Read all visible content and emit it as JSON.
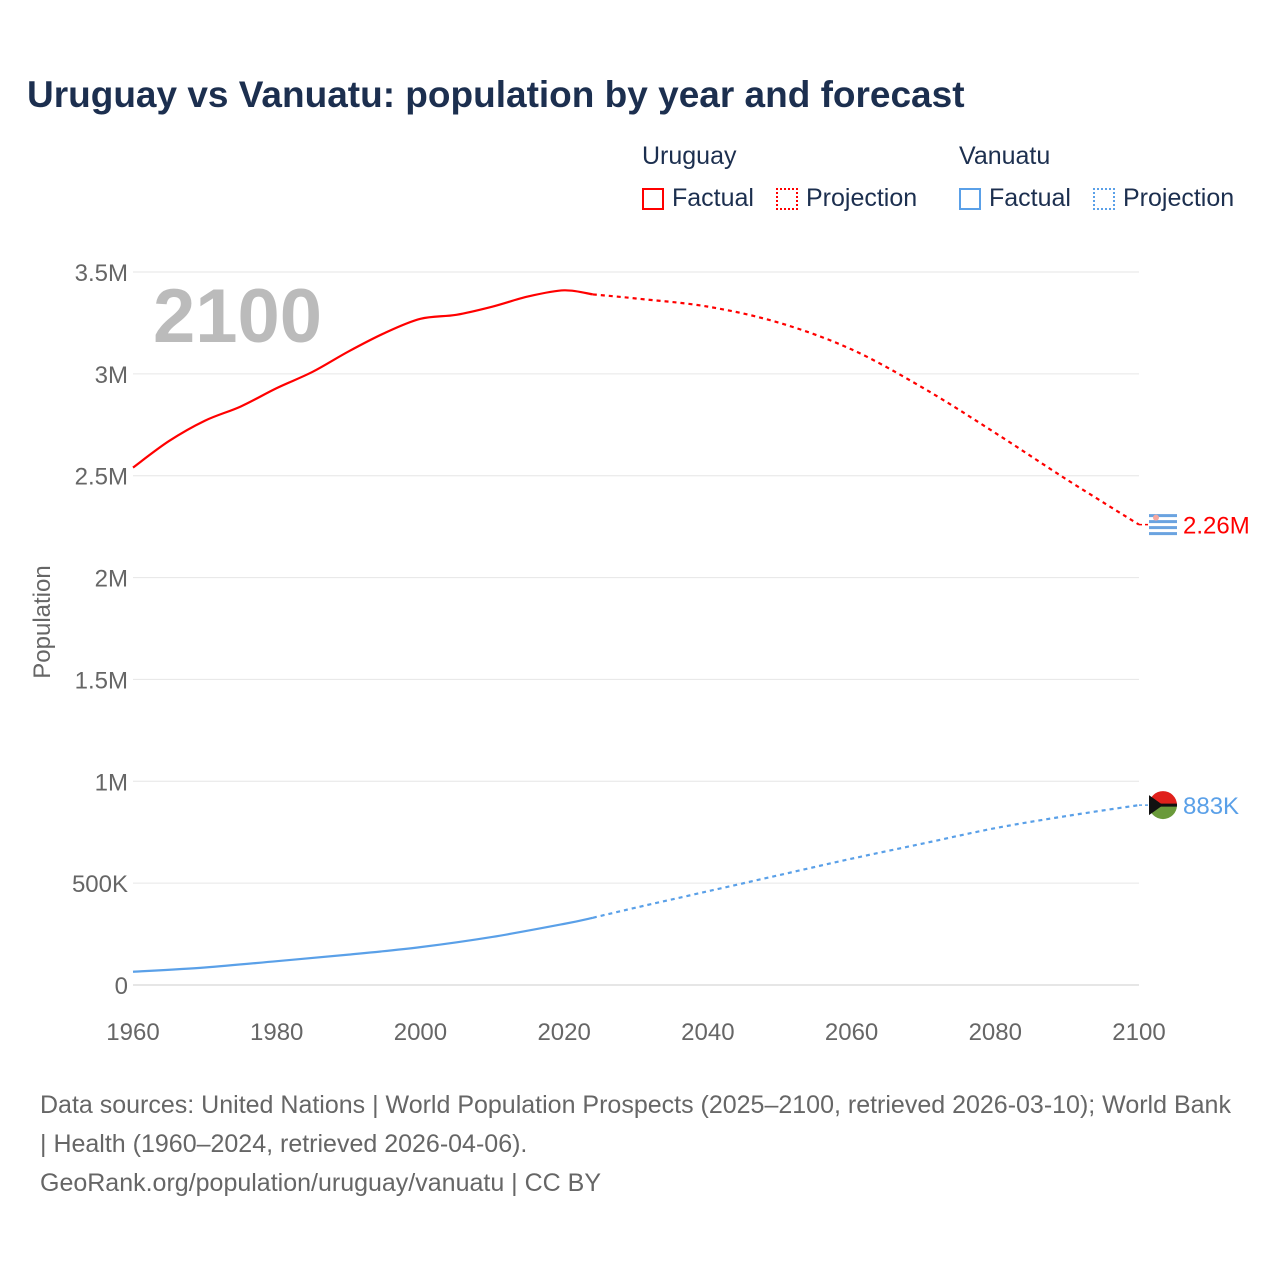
{
  "title": "Uruguay vs Vanuatu: population by year and forecast",
  "legend": {
    "groups": [
      {
        "name": "Uruguay",
        "color": "#ff0000",
        "factual": "Factual",
        "projection": "Projection"
      },
      {
        "name": "Vanuatu",
        "color": "#5aa0e8",
        "factual": "Factual",
        "projection": "Projection"
      }
    ]
  },
  "year_overlay": "2100",
  "footer": {
    "sources": "Data sources: United Nations | World Population Prospects (2025–2100, retrieved 2026-03-10); World Bank | Health (1960–2024, retrieved 2026-04-06).",
    "link": "GeoRank.org/population/uruguay/vanuatu | CC BY"
  },
  "chart_data": {
    "type": "line",
    "title": "Uruguay vs Vanuatu: population by year and forecast",
    "xlabel": "",
    "ylabel": "Population",
    "xlim": [
      1960,
      2100
    ],
    "ylim": [
      0,
      3500000
    ],
    "x_ticks": [
      "1960",
      "1980",
      "2000",
      "2020",
      "2040",
      "2060",
      "2080",
      "2100"
    ],
    "x_tick_values": [
      1960,
      1980,
      2000,
      2020,
      2040,
      2060,
      2080,
      2100
    ],
    "y_ticks": [
      "0",
      "500K",
      "1M",
      "1.5M",
      "2M",
      "2.5M",
      "3M",
      "3.5M"
    ],
    "y_tick_values": [
      0,
      500000,
      1000000,
      1500000,
      2000000,
      2500000,
      3000000,
      3500000
    ],
    "grid": true,
    "legend_position": "top-right",
    "series": [
      {
        "name": "Uruguay",
        "color": "#ff0000",
        "end_label": "2.26M",
        "factual": {
          "x": [
            1960,
            1965,
            1970,
            1975,
            1980,
            1985,
            1990,
            1995,
            2000,
            2005,
            2010,
            2015,
            2020,
            2024
          ],
          "y": [
            2540000,
            2670000,
            2770000,
            2840000,
            2930000,
            3010000,
            3110000,
            3200000,
            3270000,
            3290000,
            3330000,
            3380000,
            3410000,
            3390000
          ]
        },
        "projection": {
          "x": [
            2024,
            2030,
            2040,
            2050,
            2060,
            2070,
            2080,
            2090,
            2100
          ],
          "y": [
            3390000,
            3370000,
            3330000,
            3250000,
            3120000,
            2930000,
            2710000,
            2480000,
            2260000
          ]
        }
      },
      {
        "name": "Vanuatu",
        "color": "#5aa0e8",
        "end_label": "883K",
        "factual": {
          "x": [
            1960,
            1970,
            1980,
            1990,
            2000,
            2010,
            2020,
            2024
          ],
          "y": [
            65000,
            86000,
            117000,
            149000,
            186000,
            236000,
            300000,
            330000
          ]
        },
        "projection": {
          "x": [
            2024,
            2030,
            2040,
            2050,
            2060,
            2070,
            2080,
            2090,
            2100
          ],
          "y": [
            330000,
            380000,
            460000,
            540000,
            620000,
            695000,
            770000,
            830000,
            883000
          ]
        }
      }
    ]
  }
}
